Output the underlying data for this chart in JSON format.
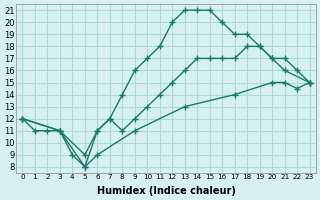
{
  "xlabel": "Humidex (Indice chaleur)",
  "ylabel": "",
  "xlim": [
    -0.5,
    23.5
  ],
  "ylim": [
    7.5,
    21.5
  ],
  "yticks": [
    8,
    9,
    10,
    11,
    12,
    13,
    14,
    15,
    16,
    17,
    18,
    19,
    20,
    21
  ],
  "xticks": [
    0,
    1,
    2,
    3,
    4,
    5,
    6,
    7,
    8,
    9,
    10,
    11,
    12,
    13,
    14,
    15,
    16,
    17,
    18,
    19,
    20,
    21,
    22,
    23
  ],
  "xtick_labels": [
    "0",
    "1",
    "2",
    "3",
    "4",
    "5",
    "6",
    "7",
    "8",
    "9",
    "10",
    "11",
    "12",
    "13",
    "14",
    "15",
    "16",
    "17",
    "18",
    "19",
    "20",
    "21",
    "22",
    "23"
  ],
  "background_color": "#d6f0f0",
  "grid_color": "#b0d8d8",
  "line_color": "#1a7a6a",
  "line1_x": [
    0,
    1,
    2,
    3,
    4,
    5,
    6,
    7,
    8,
    9,
    10,
    11,
    12,
    13,
    14,
    15,
    16,
    17,
    18,
    19,
    20,
    21,
    23
  ],
  "line1_y": [
    12,
    11,
    11,
    11,
    9,
    8,
    11,
    12,
    14,
    16,
    17,
    18,
    20,
    21,
    21,
    21,
    20,
    19,
    19,
    18,
    17,
    16,
    15
  ],
  "line2_x": [
    0,
    3,
    5,
    6,
    7,
    8,
    9,
    10,
    11,
    12,
    13,
    14,
    15,
    16,
    17,
    18,
    19,
    20,
    21,
    22,
    23
  ],
  "line2_y": [
    12,
    11,
    9,
    11,
    12,
    11,
    12,
    13,
    14,
    15,
    16,
    17,
    17,
    17,
    17,
    18,
    18,
    17,
    17,
    16,
    15
  ],
  "line3_x": [
    0,
    3,
    5,
    6,
    9,
    13,
    17,
    20,
    21,
    22,
    23
  ],
  "line3_y": [
    12,
    11,
    8,
    9,
    11,
    13,
    14,
    15,
    15,
    14.5,
    15
  ]
}
